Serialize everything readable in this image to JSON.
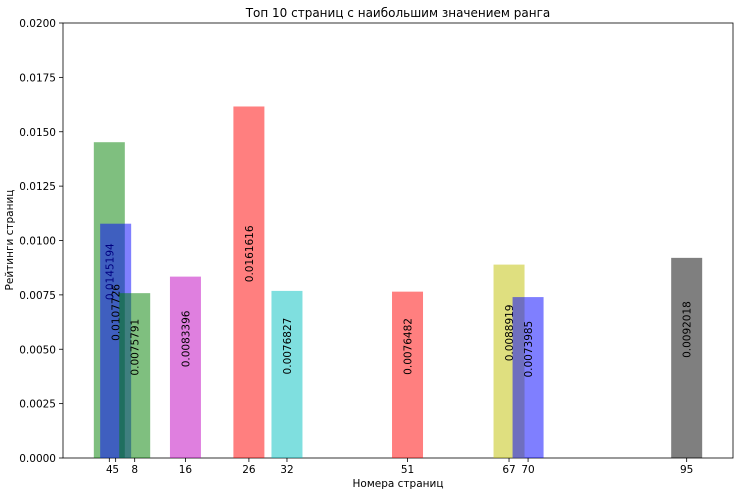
{
  "chart_data": {
    "type": "bar",
    "title": "Топ 10 страниц с наибольшим значением ранга",
    "x_label": "Номера страниц",
    "y_label": "Рейтинги страниц",
    "x": [
      4,
      5,
      8,
      16,
      26,
      32,
      51,
      67,
      70,
      95
    ],
    "values": [
      0.0145194,
      0.0107726,
      0.0075791,
      0.0083396,
      0.0161616,
      0.0076827,
      0.0076482,
      0.0088919,
      0.0073985,
      0.0092018
    ],
    "colors": [
      "#008000",
      "#0000ff",
      "#008000",
      "#bf00bf",
      "#ff0000",
      "#00bfbf",
      "#ff0000",
      "#bfbf00",
      "#0000ff",
      "#000000"
    ],
    "alpha": 0.5,
    "xlim": [
      -3.3,
      102.3
    ],
    "xticks": [
      4,
      5,
      8,
      16,
      26,
      32,
      51,
      67,
      70,
      95
    ],
    "ylim": [
      0,
      0.02
    ],
    "yticks": [
      {
        "value": 0,
        "label": "0.0000"
      },
      {
        "value": 0.0025,
        "label": "0.0025"
      },
      {
        "value": 0.005,
        "label": "0.0050"
      },
      {
        "value": 0.0075,
        "label": "0.0075"
      },
      {
        "value": 0.01,
        "label": "0.0100"
      },
      {
        "value": 0.0125,
        "label": "0.0125"
      },
      {
        "value": 0.015,
        "label": "0.0150"
      },
      {
        "value": 0.0175,
        "label": "0.0175"
      },
      {
        "value": 0.02,
        "label": "0.0200"
      }
    ]
  }
}
